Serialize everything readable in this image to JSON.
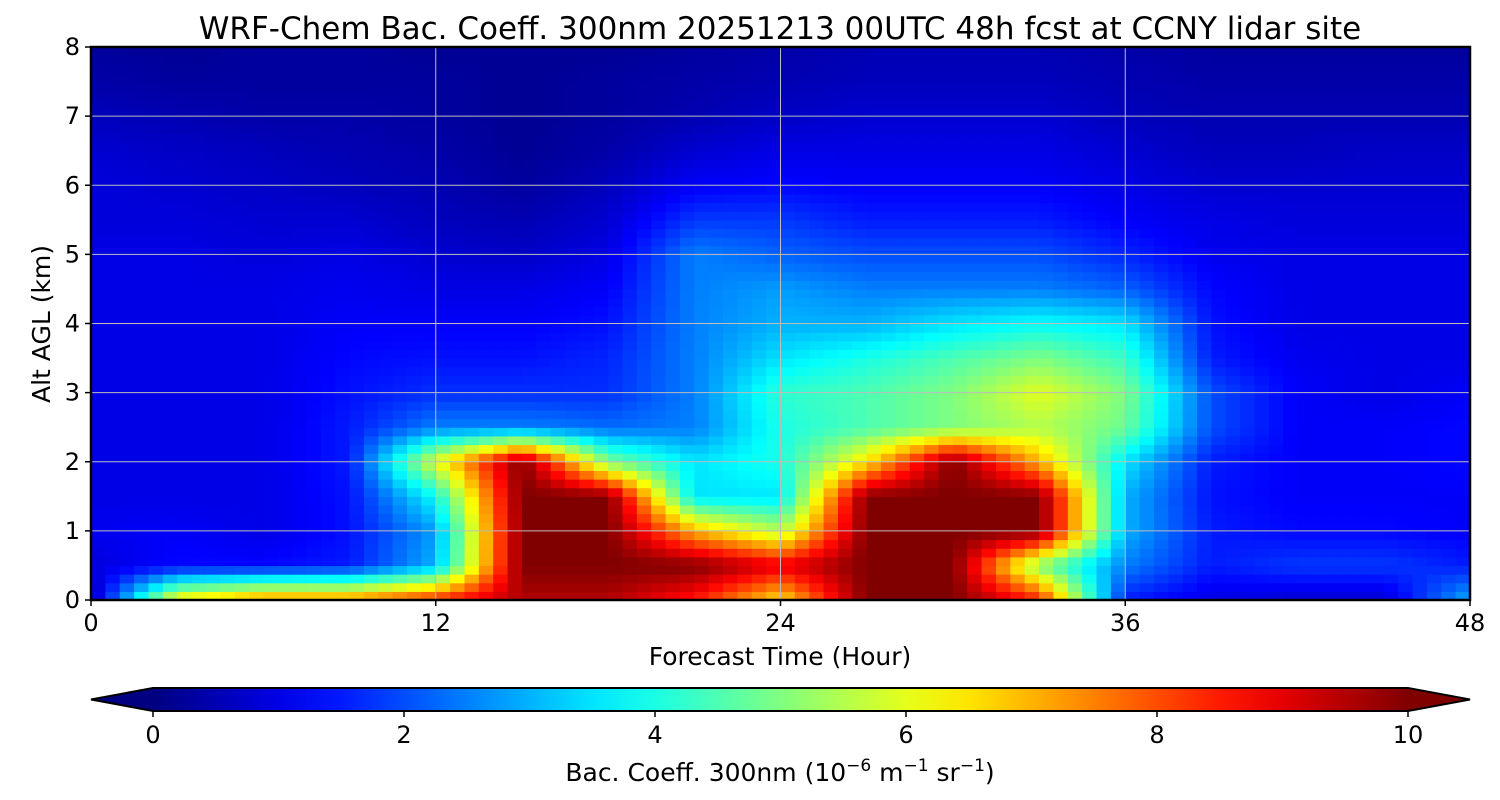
{
  "chart_data": {
    "type": "heatmap",
    "title": "WRF-Chem Bac. Coeff. 300nm  20251213 00UTC 48h fcst at CCNY lidar site",
    "xlabel": "Forecast Time (Hour)",
    "ylabel": "Alt AGL (km)",
    "xlim": [
      0,
      48
    ],
    "ylim": [
      0,
      8
    ],
    "xticks": [
      0,
      12,
      24,
      36,
      48
    ],
    "yticks": [
      0,
      1,
      2,
      3,
      4,
      5,
      6,
      7,
      8
    ],
    "grid": true,
    "colormap": "jet",
    "colorbar": {
      "label_main": "Bac. Coeff. 300nm  (10",
      "label_exp1": "−6",
      "label_mid": " m",
      "label_exp2": "−1",
      "label_mid2": " sr",
      "label_exp3": "−1",
      "label_end": ")",
      "range": [
        0,
        10
      ],
      "ticks": [
        0,
        2,
        4,
        6,
        8,
        10
      ],
      "extend": "both",
      "orientation": "horizontal",
      "location": "bottom"
    },
    "x": [
      0,
      3,
      6,
      9,
      12,
      15,
      18,
      21,
      24,
      27,
      30,
      33,
      36,
      39,
      42,
      45,
      48
    ],
    "y": [
      0,
      0.5,
      1,
      1.5,
      2,
      2.5,
      3,
      3.5,
      4,
      4.5,
      5,
      5.5,
      6,
      6.5,
      7,
      7.5,
      8
    ],
    "values": [
      [
        0.5,
        6.5,
        7.5,
        7.5,
        8.5,
        9.5,
        9.5,
        8.5,
        6.5,
        10,
        10,
        8.5,
        1.5,
        1.0,
        0.8,
        0.8,
        3.0
      ],
      [
        0.9,
        1.3,
        1.3,
        1.5,
        3.0,
        10,
        10,
        10,
        9.0,
        10,
        10,
        5.0,
        2.5,
        1.5,
        1.8,
        1.8,
        1.5
      ],
      [
        1.1,
        1.2,
        1.0,
        1.4,
        2.8,
        10,
        10,
        7.0,
        5.5,
        10,
        10,
        10,
        3.0,
        1.5,
        1.3,
        1.3,
        1.2
      ],
      [
        1.0,
        1.0,
        1.0,
        1.4,
        3.8,
        10,
        10,
        3.5,
        3.5,
        10,
        10,
        10,
        3.0,
        1.4,
        1.2,
        1.2,
        1.2
      ],
      [
        1.0,
        1.0,
        1.0,
        1.5,
        6.0,
        10,
        5.0,
        3.5,
        4.0,
        6.5,
        10,
        7.0,
        3.5,
        1.5,
        1.2,
        1.2,
        1.3
      ],
      [
        1.0,
        1.0,
        1.0,
        1.5,
        2.5,
        2.5,
        2.3,
        2.5,
        4.0,
        4.5,
        5.0,
        5.5,
        4.8,
        2.0,
        1.2,
        1.2,
        1.3
      ],
      [
        1.0,
        1.0,
        1.0,
        1.4,
        1.7,
        1.7,
        1.7,
        2.5,
        4.2,
        4.5,
        5.0,
        6.0,
        5.0,
        2.0,
        1.2,
        1.0,
        1.2
      ],
      [
        1.0,
        1.0,
        1.0,
        1.3,
        1.4,
        1.4,
        1.6,
        2.5,
        3.5,
        4.0,
        4.5,
        5.0,
        4.3,
        1.5,
        1.1,
        1.0,
        1.0
      ],
      [
        1.0,
        1.0,
        1.0,
        1.2,
        1.2,
        1.2,
        1.4,
        2.5,
        3.0,
        3.0,
        3.5,
        3.8,
        3.5,
        1.4,
        1.0,
        1.0,
        1.0
      ],
      [
        1.0,
        1.0,
        1.0,
        1.1,
        1.0,
        1.0,
        1.2,
        2.5,
        2.8,
        2.5,
        2.5,
        2.5,
        2.2,
        1.3,
        1.0,
        1.0,
        1.0
      ],
      [
        1.0,
        1.0,
        0.9,
        1.0,
        0.8,
        0.7,
        1.0,
        2.5,
        2.2,
        2.0,
        2.0,
        2.0,
        1.6,
        1.1,
        1.0,
        1.0,
        1.0
      ],
      [
        0.9,
        0.9,
        0.8,
        0.8,
        0.6,
        0.5,
        0.8,
        1.8,
        1.8,
        1.5,
        1.5,
        1.5,
        1.2,
        1.0,
        0.9,
        0.9,
        0.9
      ],
      [
        0.9,
        0.8,
        0.7,
        0.6,
        0.5,
        0.3,
        0.6,
        1.2,
        1.3,
        1.2,
        1.2,
        1.2,
        1.0,
        0.8,
        0.8,
        0.8,
        0.8
      ],
      [
        0.8,
        0.7,
        0.6,
        0.5,
        0.4,
        0.2,
        0.4,
        0.8,
        1.0,
        1.0,
        1.0,
        1.0,
        0.8,
        0.6,
        0.6,
        0.7,
        0.7
      ],
      [
        0.6,
        0.5,
        0.4,
        0.4,
        0.3,
        0.2,
        0.3,
        0.5,
        0.7,
        0.8,
        0.8,
        0.8,
        0.6,
        0.5,
        0.5,
        0.5,
        0.5
      ],
      [
        0.4,
        0.3,
        0.3,
        0.3,
        0.3,
        0.2,
        0.3,
        0.4,
        0.5,
        0.6,
        0.6,
        0.6,
        0.5,
        0.4,
        0.4,
        0.4,
        0.4
      ],
      [
        0.3,
        0.2,
        0.3,
        0.3,
        0.2,
        0.2,
        0.2,
        0.3,
        0.4,
        0.5,
        0.5,
        0.5,
        0.4,
        0.3,
        0.3,
        0.3,
        0.3
      ]
    ]
  }
}
